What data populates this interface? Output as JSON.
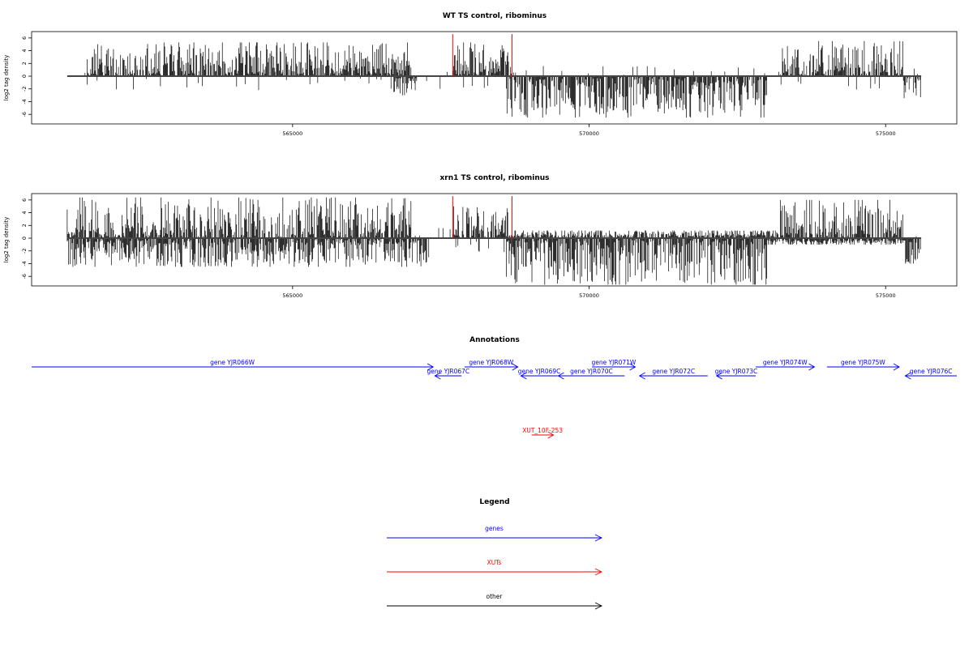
{
  "chart_data": [
    {
      "type": "bar",
      "title": "WT TS control, ribominus",
      "ylabel": "log2 tag density",
      "xlim": [
        560600,
        576200
      ],
      "ylim": [
        -7.5,
        7
      ],
      "x_ticks": [
        565000,
        570000,
        575000
      ],
      "x_tick_labels": [
        "565000",
        "570000",
        "575000"
      ],
      "y_ticks": [
        -6,
        -4,
        -2,
        0,
        2,
        4,
        6
      ],
      "y_tick_labels": [
        "-6",
        "-4",
        "-2",
        "0",
        "2",
        "4",
        "6"
      ],
      "data_x_range": [
        561200,
        575600
      ],
      "markers": [
        567700,
        568700
      ],
      "marker_color": "#ff0000",
      "forward_strand_amplitude": [
        {
          "from": 561200,
          "to": 561500,
          "max": 0.3
        },
        {
          "from": 561500,
          "to": 567000,
          "max": 5.3
        },
        {
          "from": 567000,
          "to": 567700,
          "max": 0.3
        },
        {
          "from": 567700,
          "to": 568700,
          "max": 5.3
        },
        {
          "from": 568700,
          "to": 573200,
          "max": 0.5
        },
        {
          "from": 573200,
          "to": 575300,
          "max": 5.5
        },
        {
          "from": 575300,
          "to": 575600,
          "max": 0.3
        }
      ],
      "reverse_strand_amplitude": [
        {
          "from": 561200,
          "to": 566700,
          "max": 0.3
        },
        {
          "from": 566700,
          "to": 567100,
          "max": 3.0
        },
        {
          "from": 567100,
          "to": 568600,
          "max": 0.3
        },
        {
          "from": 568600,
          "to": 573000,
          "max": 6.5
        },
        {
          "from": 573000,
          "to": 575300,
          "max": 0.3
        },
        {
          "from": 575300,
          "to": 575600,
          "max": 3.5
        }
      ]
    },
    {
      "type": "bar",
      "title": "xrn1 TS control, ribominus",
      "ylabel": "log2 tag density",
      "xlim": [
        560600,
        576200
      ],
      "ylim": [
        -7.5,
        7
      ],
      "x_ticks": [
        565000,
        570000,
        575000
      ],
      "x_tick_labels": [
        "565000",
        "570000",
        "575000"
      ],
      "y_ticks": [
        -6,
        -4,
        -2,
        0,
        2,
        4,
        6
      ],
      "y_tick_labels": [
        "-6",
        "-4",
        "-2",
        "0",
        "2",
        "4",
        "6"
      ],
      "data_x_range": [
        561200,
        575600
      ],
      "markers": [
        567700,
        568700
      ],
      "marker_color": "#ff0000",
      "forward_strand_amplitude": [
        {
          "from": 561200,
          "to": 567000,
          "max": 6.4
        },
        {
          "from": 567000,
          "to": 567700,
          "max": 0.5
        },
        {
          "from": 567700,
          "to": 568700,
          "max": 5.0
        },
        {
          "from": 568700,
          "to": 573200,
          "max": 1.2
        },
        {
          "from": 573200,
          "to": 575300,
          "max": 6.0
        },
        {
          "from": 575300,
          "to": 575600,
          "max": 0.3
        }
      ],
      "reverse_strand_amplitude": [
        {
          "from": 561200,
          "to": 566700,
          "max": 4.5
        },
        {
          "from": 566700,
          "to": 567300,
          "max": 4.5
        },
        {
          "from": 567300,
          "to": 568600,
          "max": 0.5
        },
        {
          "from": 568600,
          "to": 573000,
          "max": 7.3
        },
        {
          "from": 573000,
          "to": 575300,
          "max": 1.0
        },
        {
          "from": 575300,
          "to": 575600,
          "max": 4.0
        }
      ]
    }
  ],
  "annotations": {
    "title": "Annotations",
    "features": [
      {
        "label": "gene YJR066W",
        "start": 560600,
        "end": 567370,
        "strand": "+",
        "color": "#0000ff",
        "row": 0
      },
      {
        "label": "gene YJR067C",
        "start": 567400,
        "end": 567850,
        "strand": "-",
        "color": "#0000ff",
        "row": 1
      },
      {
        "label": "gene YJR068W",
        "start": 567900,
        "end": 568800,
        "strand": "+",
        "color": "#0000ff",
        "row": 0
      },
      {
        "label": "gene YJR069C",
        "start": 568850,
        "end": 569470,
        "strand": "-",
        "color": "#0000ff",
        "row": 1
      },
      {
        "label": "gene YJR070C",
        "start": 569480,
        "end": 570600,
        "strand": "-",
        "color": "#0000ff",
        "row": 1
      },
      {
        "label": "gene YJR071W",
        "start": 570050,
        "end": 570780,
        "strand": "+",
        "color": "#0000ff",
        "row": 0
      },
      {
        "label": "gene YJR072C",
        "start": 570850,
        "end": 572000,
        "strand": "-",
        "color": "#0000ff",
        "row": 1
      },
      {
        "label": "gene YJR073C",
        "start": 572150,
        "end": 572810,
        "strand": "-",
        "color": "#0000ff",
        "row": 1
      },
      {
        "label": "gene YJR074W",
        "start": 572810,
        "end": 573800,
        "strand": "+",
        "color": "#0000ff",
        "row": 0
      },
      {
        "label": "gene YJR075W",
        "start": 574010,
        "end": 575230,
        "strand": "+",
        "color": "#0000ff",
        "row": 0
      },
      {
        "label": "gene YJR076C",
        "start": 575330,
        "end": 576200,
        "strand": "-",
        "color": "#0000ff",
        "row": 1
      },
      {
        "label": "XUT_10F-253",
        "start": 569030,
        "end": 569400,
        "strand": "+",
        "color": "#ff0000",
        "row": 4
      }
    ]
  },
  "legend": {
    "title": "Legend",
    "items": [
      {
        "label": "genes",
        "color": "#0000ff"
      },
      {
        "label": "XUTs",
        "color": "#ff0000"
      },
      {
        "label": "other",
        "color": "#000000"
      }
    ]
  }
}
